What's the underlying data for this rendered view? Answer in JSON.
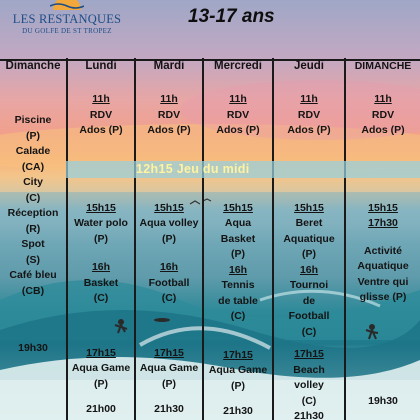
{
  "header": {
    "logo_name": "LES RESTANQUES",
    "logo_sub": "DU GOLFE DE ST TROPEZ",
    "age_range": "13-17 ans"
  },
  "banner": "12h15 Jeu du midi",
  "days": {
    "sunday": {
      "title": "Dimanche",
      "lines": [
        "Piscine",
        "(P)",
        "Calade",
        "(CA)",
        "City",
        "(C)",
        "Réception",
        "(R)",
        "Spot",
        "(S)",
        "Café bleu",
        "(CB)",
        "19h30"
      ]
    },
    "monday": {
      "title": "Lundi",
      "am_time": "11h",
      "am_line1": "RDV",
      "am_line2": "Ados (P)",
      "pm1_time": "15h15",
      "pm1_line1": "Water polo",
      "pm1_line2": "(P)",
      "pm2_time": "16h",
      "pm2_line1": "Basket",
      "pm2_line2": "(C)",
      "eve_time": "17h15",
      "eve_line1": "Aqua Game",
      "eve_line2": "(P)",
      "night": "21h00"
    },
    "tuesday": {
      "title": "Mardi",
      "am_time": "11h",
      "am_line1": "RDV",
      "am_line2": "Ados (P)",
      "pm1_time": "15h15",
      "pm1_line1": "Aqua volley",
      "pm1_line2": "(P)",
      "pm2_time": "16h",
      "pm2_line1": "Football",
      "pm2_line2": "(C)",
      "eve_time": "17h15",
      "eve_line1": "Aqua Game",
      "eve_line2": "(P)",
      "night": "21h30"
    },
    "wednesday": {
      "title": "Mercredi",
      "am_time": "11h",
      "am_line1": "RDV",
      "am_line2": "Ados (P)",
      "pm1_time": "15h15",
      "pm1_line1": "Aqua",
      "pm1_line2": "Basket",
      "pm1_line3": "(P)",
      "pm2_time": "16h",
      "pm2_line1": "Tennis",
      "pm2_line2": "de table",
      "pm2_line3": "(C)",
      "eve_time": "17h15",
      "eve_line1": "Aqua Game",
      "eve_line2": "(P)",
      "night": "21h30"
    },
    "thursday": {
      "title": "Jeudi",
      "am_time": "11h",
      "am_line1": "RDV",
      "am_line2": "Ados (P)",
      "pm1_time": "15h15",
      "pm1_line1": "Beret",
      "pm1_line2": "Aquatique",
      "pm1_line3": "(P)",
      "pm2_time": "16h",
      "pm2_line1": "Tournoi",
      "pm2_line2": "de",
      "pm2_line3": "Football",
      "pm2_line4": "(C)",
      "eve_time": "17h15",
      "eve_line1": "Beach",
      "eve_line2": "volley",
      "eve_line3": "(C)",
      "night": "21h30"
    },
    "saturday": {
      "title": "DIMANCHE",
      "am_time": "11h",
      "am_line1": "RDV",
      "am_line2": "Ados (P)",
      "pm1_time": "15h15",
      "pm1_line1": "17h30",
      "pm1_line2": "Activité",
      "pm1_line3": "Aquatique",
      "pm1_line4": "Ventre qui",
      "pm1_line5": "glisse (P)",
      "night": "19h30"
    }
  }
}
